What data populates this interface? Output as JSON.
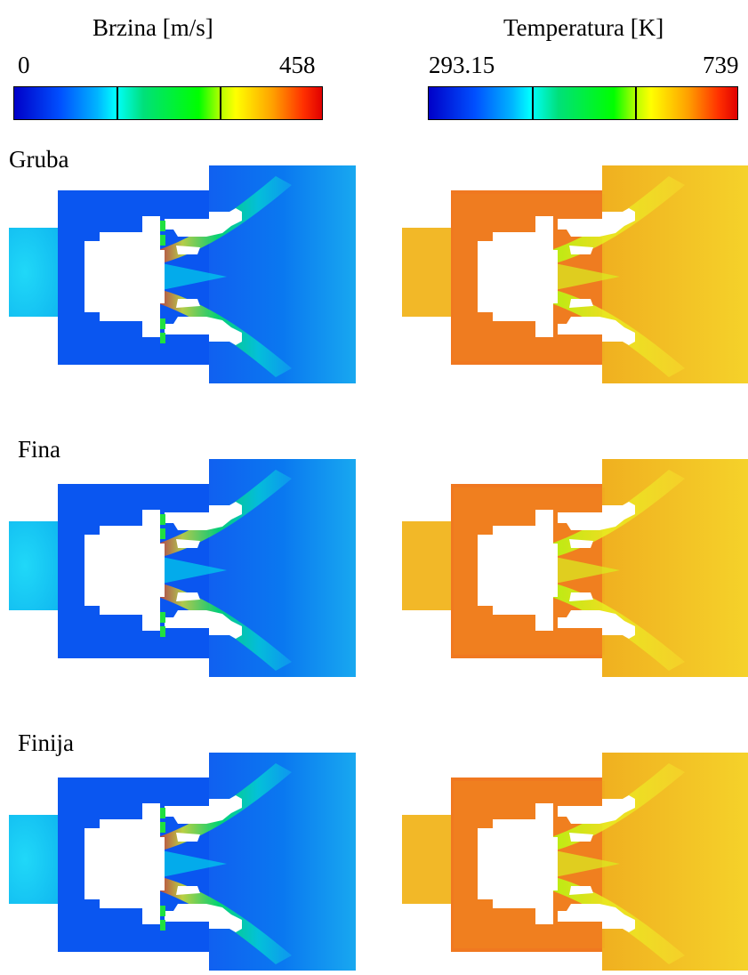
{
  "legends": {
    "velocity": {
      "title": "Brzina [m/s]",
      "min": "0",
      "max": "458"
    },
    "temperature": {
      "title": "Temperatura [K]",
      "min": "293.15",
      "max": "739"
    }
  },
  "rows": [
    {
      "label": "Gruba",
      "velocity_jet_level": 0.7,
      "temperature_hot_level": 0.88
    },
    {
      "label": "Fina",
      "velocity_jet_level": 0.68,
      "temperature_hot_level": 0.8
    },
    {
      "label": "Finija",
      "velocity_jet_level": 0.72,
      "temperature_hot_level": 0.8
    }
  ],
  "colors": {
    "jet_scale": [
      "#00007f",
      "#0000ff",
      "#007fff",
      "#00ffff",
      "#00ff00",
      "#ffff00",
      "#ff7f00",
      "#ff0000",
      "#7f0000"
    ],
    "velocity_background": "#0a78f0",
    "temperature_background": "#f5c820",
    "temperature_hot": "#f07820"
  }
}
